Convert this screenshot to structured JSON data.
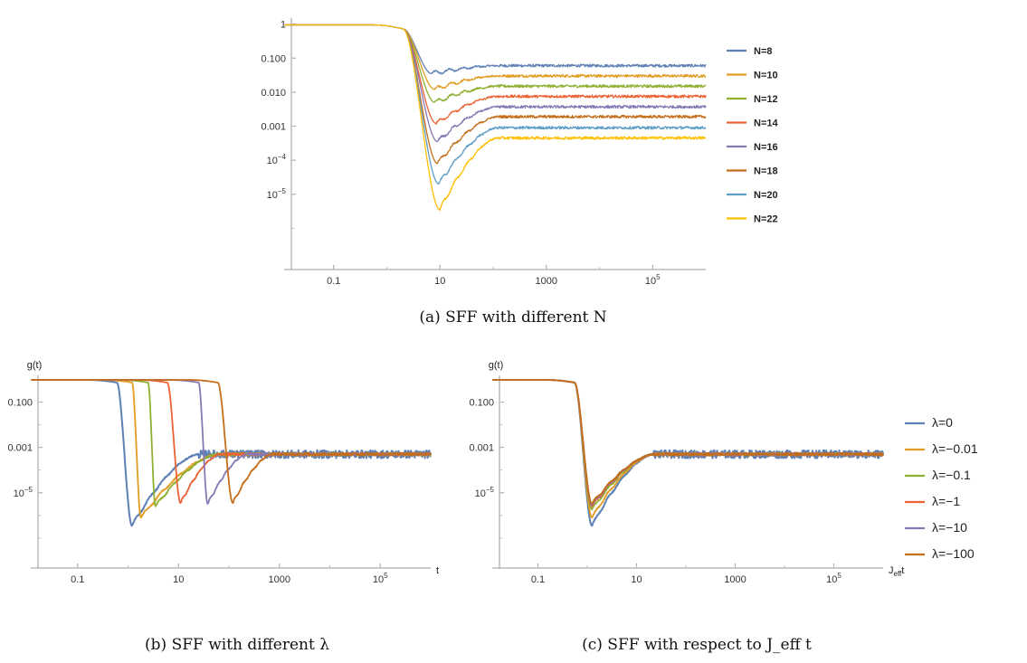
{
  "chart_data": [
    {
      "id": "a",
      "type": "line",
      "caption": "(a) SFF with different N",
      "x_scale": "log",
      "y_scale": "log",
      "xlim": [
        0.01,
        1000000
      ],
      "ylim": [
        1e-07,
        1.5
      ],
      "x_ticks": [
        {
          "v": 0.1,
          "t": "0.1"
        },
        {
          "v": 10,
          "t": "10"
        },
        {
          "v": 1000,
          "t": "1000"
        },
        {
          "v": 100000,
          "t": "10^5"
        }
      ],
      "y_ticks": [
        {
          "v": 1,
          "t": "1"
        },
        {
          "v": 0.1,
          "t": "0.100"
        },
        {
          "v": 0.01,
          "t": "0.010"
        },
        {
          "v": 0.001,
          "t": "0.001"
        },
        {
          "v": 0.0001,
          "t": "10^-4"
        },
        {
          "v": 1e-05,
          "t": "10^-5"
        }
      ],
      "xlabel": "",
      "ylabel": "",
      "legend_position": "right",
      "series": [
        {
          "name": "N=8",
          "color": "#5E81B5",
          "dip_x": 7,
          "dip_y": 0.035,
          "plateau": 0.06
        },
        {
          "name": "N=10",
          "color": "#E19C24",
          "dip_x": 8,
          "dip_y": 0.012,
          "plateau": 0.03
        },
        {
          "name": "N=12",
          "color": "#8FB032",
          "dip_x": 8,
          "dip_y": 0.005,
          "plateau": 0.015
        },
        {
          "name": "N=14",
          "color": "#EB6235",
          "dip_x": 8.5,
          "dip_y": 0.0012,
          "plateau": 0.0075
        },
        {
          "name": "N=16",
          "color": "#8778B3",
          "dip_x": 9,
          "dip_y": 0.00035,
          "plateau": 0.0037
        },
        {
          "name": "N=18",
          "color": "#C56E1A",
          "dip_x": 9,
          "dip_y": 8e-05,
          "plateau": 0.0019
        },
        {
          "name": "N=20",
          "color": "#5D9EC7",
          "dip_x": 9.5,
          "dip_y": 2e-05,
          "plateau": 0.0009
        },
        {
          "name": "N=22",
          "color": "#FFBF00",
          "dip_x": 10,
          "dip_y": 3.5e-06,
          "plateau": 0.00045
        }
      ]
    },
    {
      "id": "b",
      "type": "line",
      "caption": "(b) SFF with different λ",
      "x_scale": "log",
      "y_scale": "log",
      "xlim": [
        0.01,
        1000000
      ],
      "ylim": [
        1e-08,
        1.5
      ],
      "x_ticks": [
        {
          "v": 0.1,
          "t": "0.1"
        },
        {
          "v": 10,
          "t": "10"
        },
        {
          "v": 1000,
          "t": "1000"
        },
        {
          "v": 100000,
          "t": "10^5"
        }
      ],
      "y_ticks": [
        {
          "v": 0.1,
          "t": "0.100"
        },
        {
          "v": 0.001,
          "t": "0.001"
        },
        {
          "v": 1e-05,
          "t": "10^-5"
        }
      ],
      "xlabel": "t",
      "ylabel": "g(t)",
      "series": [
        {
          "name": "λ=0",
          "color": "#5E81B5",
          "fall_x": 0.6,
          "dip_x": 1.2,
          "dip_y": 3.5e-07,
          "plateau": 0.0005
        },
        {
          "name": "λ=−0.01",
          "color": "#E19C24",
          "fall_x": 1.2,
          "dip_x": 1.8,
          "dip_y": 8e-07,
          "plateau": 0.0005
        },
        {
          "name": "λ=−0.1",
          "color": "#8FB032",
          "fall_x": 2.5,
          "dip_x": 3.5,
          "dip_y": 2.5e-06,
          "plateau": 0.0005
        },
        {
          "name": "λ=−1",
          "color": "#EB6235",
          "fall_x": 6,
          "dip_x": 11,
          "dip_y": 3.5e-06,
          "plateau": 0.0005
        },
        {
          "name": "λ=−10",
          "color": "#8778B3",
          "fall_x": 25,
          "dip_x": 38,
          "dip_y": 3.2e-06,
          "plateau": 0.0005
        },
        {
          "name": "λ=−100",
          "color": "#C56E1A",
          "fall_x": 60,
          "dip_x": 120,
          "dip_y": 3.5e-06,
          "plateau": 0.0005
        }
      ]
    },
    {
      "id": "c",
      "type": "line",
      "caption": "(c) SFF with respect to J_eff t",
      "x_scale": "log",
      "y_scale": "log",
      "xlim": [
        0.01,
        1000000
      ],
      "ylim": [
        1e-08,
        1.5
      ],
      "x_ticks": [
        {
          "v": 0.1,
          "t": "0.1"
        },
        {
          "v": 10,
          "t": "10"
        },
        {
          "v": 1000,
          "t": "1000"
        },
        {
          "v": 100000,
          "t": "10^5"
        }
      ],
      "y_ticks": [
        {
          "v": 0.1,
          "t": "0.100"
        },
        {
          "v": 0.001,
          "t": "0.001"
        },
        {
          "v": 1e-05,
          "t": "10^-5"
        }
      ],
      "xlabel": "J_eff t",
      "ylabel": "g(t)",
      "legend_position": "right",
      "series": [
        {
          "name": "λ=0",
          "color": "#5E81B5",
          "dip_y": 3.5e-07
        },
        {
          "name": "λ=−0.01",
          "color": "#E19C24",
          "dip_y": 8e-07
        },
        {
          "name": "λ=−0.1",
          "color": "#8FB032",
          "dip_y": 1.8e-06
        },
        {
          "name": "λ=−1",
          "color": "#EB6235",
          "dip_y": 2.5e-06
        },
        {
          "name": "λ=−10",
          "color": "#8778B3",
          "dip_y": 2.8e-06
        },
        {
          "name": "λ=−100",
          "color": "#C56E1A",
          "dip_y": 3.2e-06
        }
      ]
    }
  ]
}
